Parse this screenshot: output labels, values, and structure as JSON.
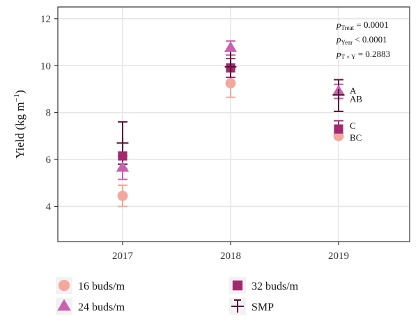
{
  "chart_data": {
    "type": "scatter",
    "ylabel_main": "Yield (kg m",
    "ylabel_sup": "−1",
    "ylabel_close": ")",
    "xlabel": "",
    "categories": [
      "2017",
      "2018",
      "2019"
    ],
    "ylim": [
      2.5,
      12.5
    ],
    "yticks": [
      "4",
      "6",
      "8",
      "10",
      "12"
    ],
    "grid": true,
    "legend_position": "bottom",
    "series": [
      {
        "name": "16 buds/m",
        "color": "#f4a79c",
        "marker": "circle",
        "values": [
          4.45,
          9.25,
          7.0
        ],
        "err_low": [
          4.0,
          8.65,
          6.95
        ],
        "err_high": [
          4.9,
          9.85,
          7.1
        ]
      },
      {
        "name": "24 buds/m",
        "color": "#c960b0",
        "marker": "triangle",
        "values": [
          5.65,
          10.75,
          8.9
        ],
        "err_low": [
          5.15,
          10.45,
          8.6
        ],
        "err_high": [
          6.15,
          11.05,
          9.2
        ]
      },
      {
        "name": "32 buds/m",
        "color": "#a3296e",
        "marker": "square",
        "values": [
          6.15,
          9.9,
          7.3
        ],
        "err_low": [
          5.6,
          9.5,
          6.95
        ],
        "err_high": [
          6.7,
          10.3,
          7.65
        ]
      },
      {
        "name": "SMP",
        "color": "#5a1038",
        "marker": "cross",
        "values": [
          6.7,
          9.95,
          8.75
        ],
        "err_low": [
          5.8,
          9.25,
          8.05
        ],
        "err_high": [
          7.6,
          10.65,
          9.4
        ]
      }
    ],
    "stats": [
      {
        "pre": "p",
        "sub": "Treat",
        "post": " = 0.0001"
      },
      {
        "pre": "p",
        "sub": "Year",
        "post": " < 0.0001"
      },
      {
        "pre": "p",
        "sub": "T × Y",
        "post": " = 0.2883"
      }
    ],
    "letters_2019": [
      {
        "text": "A",
        "y": 8.95
      },
      {
        "text": "AB",
        "y": 8.6
      },
      {
        "text": "C",
        "y": 7.45
      },
      {
        "text": "BC",
        "y": 6.95
      }
    ],
    "colors": {
      "panel": "#ffffff",
      "grid": "#e6e6e6",
      "frame": "#333333"
    }
  }
}
